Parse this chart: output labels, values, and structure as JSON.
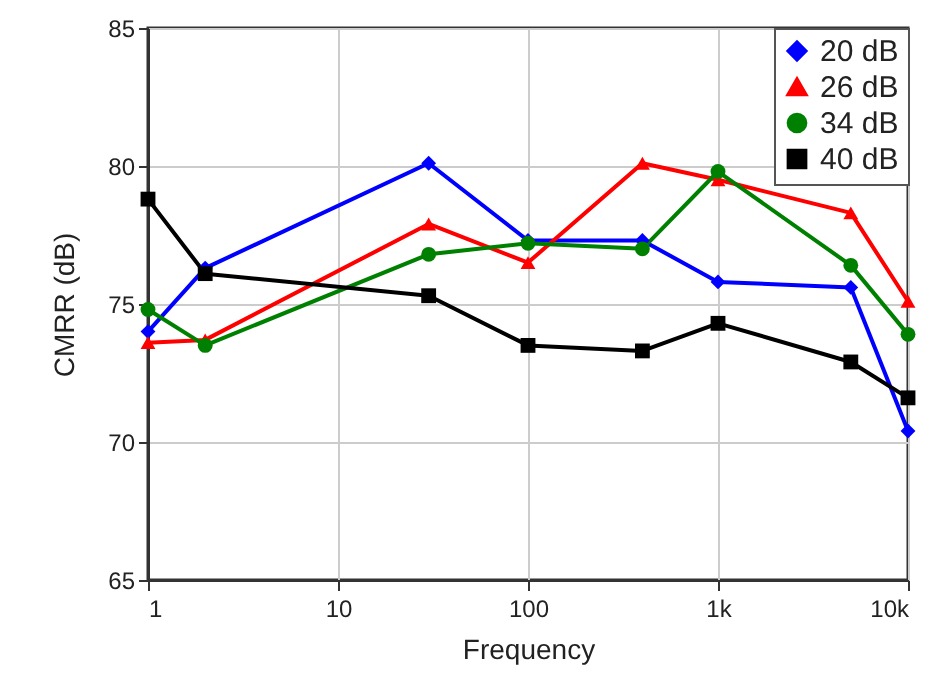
{
  "chart_data": {
    "type": "line",
    "xlabel": "Frequency",
    "ylabel": "CMRR (dB)",
    "log": "x",
    "x": [
      1,
      2,
      30,
      100,
      400,
      1000,
      5000,
      10000
    ],
    "xlim": [
      1,
      10000
    ],
    "xticks": [
      1,
      10,
      100,
      {
        "value": 1000,
        "label": "1k"
      },
      {
        "value": 10000,
        "label": "10k"
      }
    ],
    "ylim": [
      65,
      85
    ],
    "yticks": [
      65,
      70,
      75,
      80,
      85
    ],
    "grid": true,
    "legend": "top right",
    "line_style": "solid",
    "series": [
      {
        "name": "20 dB",
        "color": "#0000ff",
        "marker": "diamond",
        "values": [
          74.0,
          76.3,
          80.1,
          77.3,
          77.3,
          75.8,
          75.6,
          70.4
        ]
      },
      {
        "name": "26 dB",
        "color": "#ff0000",
        "marker": "triangle",
        "values": [
          73.6,
          73.7,
          77.9,
          76.5,
          80.1,
          79.5,
          78.3,
          75.1
        ]
      },
      {
        "name": "34 dB",
        "color": "#008000",
        "marker": "circle",
        "values": [
          74.8,
          73.5,
          76.8,
          77.2,
          77.0,
          79.8,
          76.4,
          73.9
        ]
      },
      {
        "name": "40 dB",
        "color": "#000000",
        "marker": "square",
        "values": [
          78.8,
          76.1,
          75.3,
          73.5,
          73.3,
          74.3,
          72.9,
          71.6
        ]
      }
    ]
  }
}
